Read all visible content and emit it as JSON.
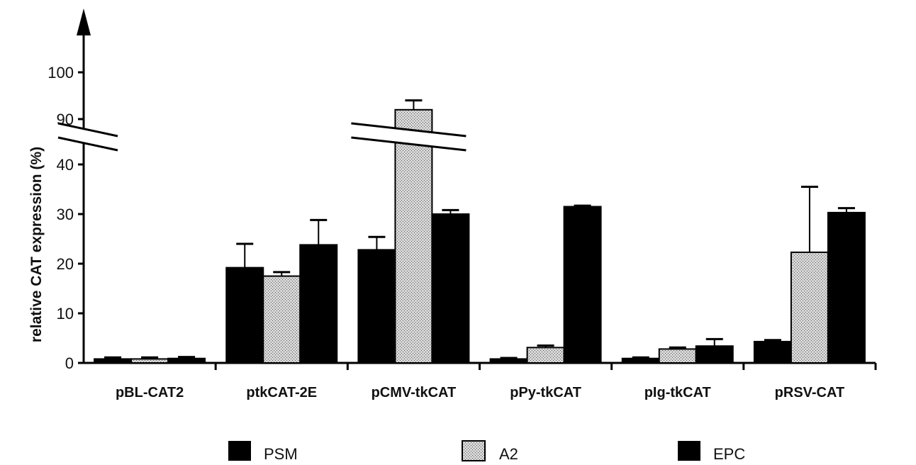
{
  "chart_data": {
    "type": "bar",
    "ylabel": "relative CAT expression (%)",
    "categories": [
      "pBL-CAT2",
      "ptkCAT-2E",
      "pCMV-tkCAT",
      "pPy-tkCAT",
      "pIg-tkCAT",
      "pRSV-CAT"
    ],
    "y_ticks": [
      "0",
      "10",
      "20",
      "30",
      "40",
      "90",
      "100"
    ],
    "y_axis_break": [
      40,
      90
    ],
    "ylim": [
      0,
      100
    ],
    "series": [
      {
        "name": "PSM",
        "color": "#000000",
        "fill": "solid",
        "values": [
          0.8,
          19.2,
          22.8,
          0.8,
          0.9,
          4.3
        ],
        "error": [
          0.3,
          4.8,
          2.6,
          0.2,
          0.2,
          0.3
        ]
      },
      {
        "name": "A2",
        "color": "#c8c8c8",
        "fill": "stippled",
        "values": [
          0.8,
          17.5,
          92,
          3.1,
          2.8,
          22.3
        ],
        "error": [
          0.3,
          0.8,
          2,
          0.4,
          0.3,
          13.2
        ]
      },
      {
        "name": "EPC",
        "color": "#000000",
        "fill": "solid",
        "values": [
          0.9,
          23.8,
          30,
          31.5,
          3.4,
          30.3
        ],
        "error": [
          0.3,
          5,
          0.8,
          0.2,
          1.4,
          0.9
        ]
      }
    ],
    "legend": [
      "PSM",
      "A2",
      "EPC"
    ],
    "legend_position": "bottom"
  }
}
